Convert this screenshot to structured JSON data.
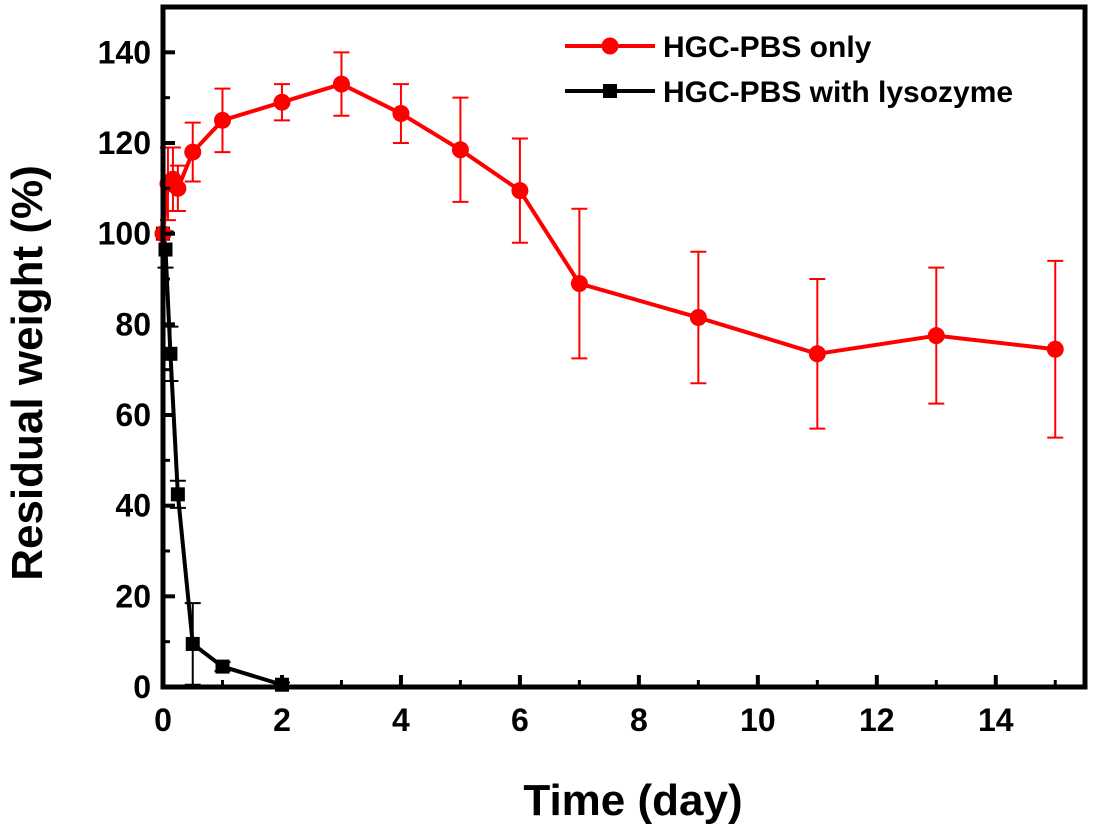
{
  "chart_data": {
    "type": "line",
    "title": "",
    "xlabel": "Time (day)",
    "ylabel": "Residual weight (%)",
    "xlim": [
      0,
      15.5
    ],
    "ylim": [
      0,
      150
    ],
    "xticks": [
      0,
      2,
      4,
      6,
      8,
      10,
      12,
      14
    ],
    "yticks": [
      0,
      20,
      40,
      60,
      80,
      100,
      120,
      140
    ],
    "grid": false,
    "legend_position": "top-right",
    "series": [
      {
        "name": "HGC-PBS only",
        "color": "#ff0000",
        "marker": "circle",
        "points": [
          {
            "x": 0,
            "y": 100,
            "err": 0
          },
          {
            "x": 0.083,
            "y": 111,
            "err": 8
          },
          {
            "x": 0.167,
            "y": 112,
            "err": 7
          },
          {
            "x": 0.25,
            "y": 110,
            "err": 5
          },
          {
            "x": 0.5,
            "y": 118,
            "err": 6.5
          },
          {
            "x": 1,
            "y": 125,
            "err": 7
          },
          {
            "x": 2,
            "y": 129,
            "err": 4
          },
          {
            "x": 3,
            "y": 133,
            "err": 7
          },
          {
            "x": 4,
            "y": 126.5,
            "err": 6.5
          },
          {
            "x": 5,
            "y": 118.5,
            "err": 11.5
          },
          {
            "x": 6,
            "y": 109.5,
            "err": 11.5
          },
          {
            "x": 7,
            "y": 89,
            "err": 16.5
          },
          {
            "x": 9,
            "y": 81.5,
            "err": 14.5
          },
          {
            "x": 11,
            "y": 73.5,
            "err": 16.5
          },
          {
            "x": 13,
            "y": 77.5,
            "err": 15
          },
          {
            "x": 15,
            "y": 74.5,
            "err": 19.5
          }
        ]
      },
      {
        "name": "HGC-PBS with lysozyme",
        "color": "#000000",
        "marker": "square",
        "points": [
          {
            "x": 0,
            "y": 100,
            "err": 0
          },
          {
            "x": 0.042,
            "y": 96.5,
            "err": 4
          },
          {
            "x": 0.125,
            "y": 73.5,
            "err": 6
          },
          {
            "x": 0.25,
            "y": 42.5,
            "err": 3
          },
          {
            "x": 0.5,
            "y": 9.5,
            "err": 9
          },
          {
            "x": 1,
            "y": 4.5,
            "err": 1
          },
          {
            "x": 2,
            "y": 0.5,
            "err": 0.5
          }
        ]
      }
    ]
  }
}
